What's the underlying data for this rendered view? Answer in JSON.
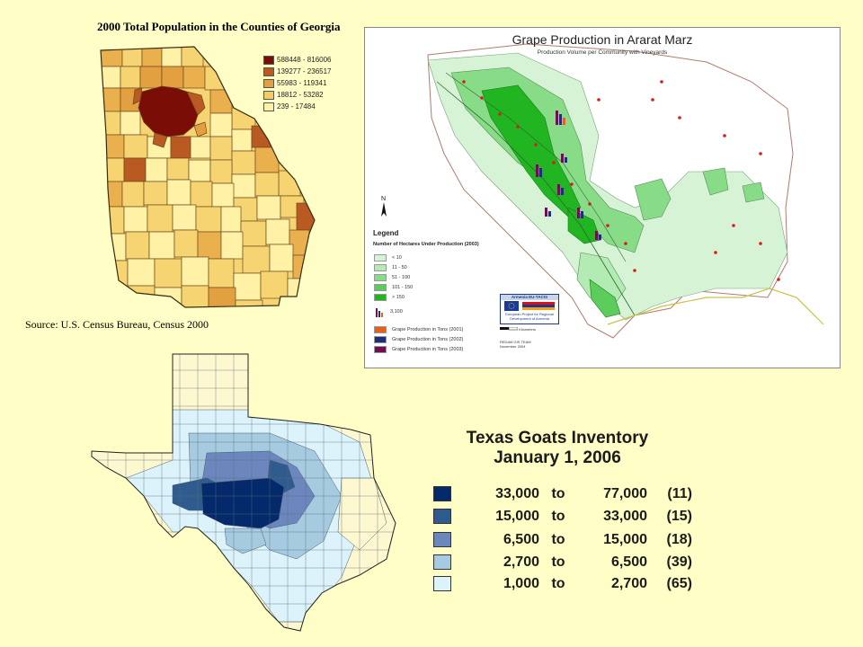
{
  "georgia": {
    "title": "2000 Total Population in the Counties of Georgia",
    "source": "Source: U.S. Census Bureau, Census 2000",
    "legend": [
      {
        "label": "588448 - 816006",
        "color": "#7a0e06"
      },
      {
        "label": "139277 - 236517",
        "color": "#b85a22"
      },
      {
        "label": "55983 - 119341",
        "color": "#e3a040"
      },
      {
        "label": "18812 - 53282",
        "color": "#f3cb68"
      },
      {
        "label": "239 - 17484",
        "color": "#fff1a6"
      }
    ]
  },
  "armenia": {
    "title": "Grape Production in Ararat Marz",
    "subtitle": "Production Volume per Community with Vineyards",
    "north_label": "N",
    "legend_title": "Legend",
    "legend_subtitle": "Number of Hectares Under Production (2003)",
    "hectare_classes": [
      {
        "label": "< 10",
        "color": "#d6f3d6"
      },
      {
        "label": "11 - 50",
        "color": "#b4ebb4"
      },
      {
        "label": "51 - 100",
        "color": "#88dc88"
      },
      {
        "label": "101 - 150",
        "color": "#5ccd5c"
      },
      {
        "label": "> 150",
        "color": "#22b522"
      }
    ],
    "symbol_label": "3,100",
    "production_series": [
      {
        "label": "Grape Production in Tons (2001)",
        "color": "#e4601c"
      },
      {
        "label": "Grape Production in Tons (2002)",
        "color": "#1c2d7a"
      },
      {
        "label": "Grape Production in Tons (2003)",
        "color": "#6e0f4f"
      }
    ],
    "eu_header": "Armenia EU-TACIS",
    "eu_text": "European Project for Regional Development of Armenia",
    "scale_label": "Kilometers",
    "team_line1": "REDAM GIS TEAM",
    "team_line2": "November 2004"
  },
  "texas": {
    "title_line1": "Texas Goats Inventory",
    "title_line2": "January 1, 2006",
    "legend": [
      {
        "low": "33,000",
        "to": "to",
        "high": "77,000",
        "count": "(11)",
        "color": "#052a6b"
      },
      {
        "low": "15,000",
        "to": "to",
        "high": "33,000",
        "count": "(15)",
        "color": "#2f5b8f"
      },
      {
        "low": "6,500",
        "to": "to",
        "high": "15,000",
        "count": "(18)",
        "color": "#6b87be"
      },
      {
        "low": "2,700",
        "to": "to",
        "high": "6,500",
        "count": "(39)",
        "color": "#a6cbe0"
      },
      {
        "low": "1,000",
        "to": "to",
        "high": "2,700",
        "count": "(65)",
        "color": "#ddf3fb"
      }
    ]
  }
}
